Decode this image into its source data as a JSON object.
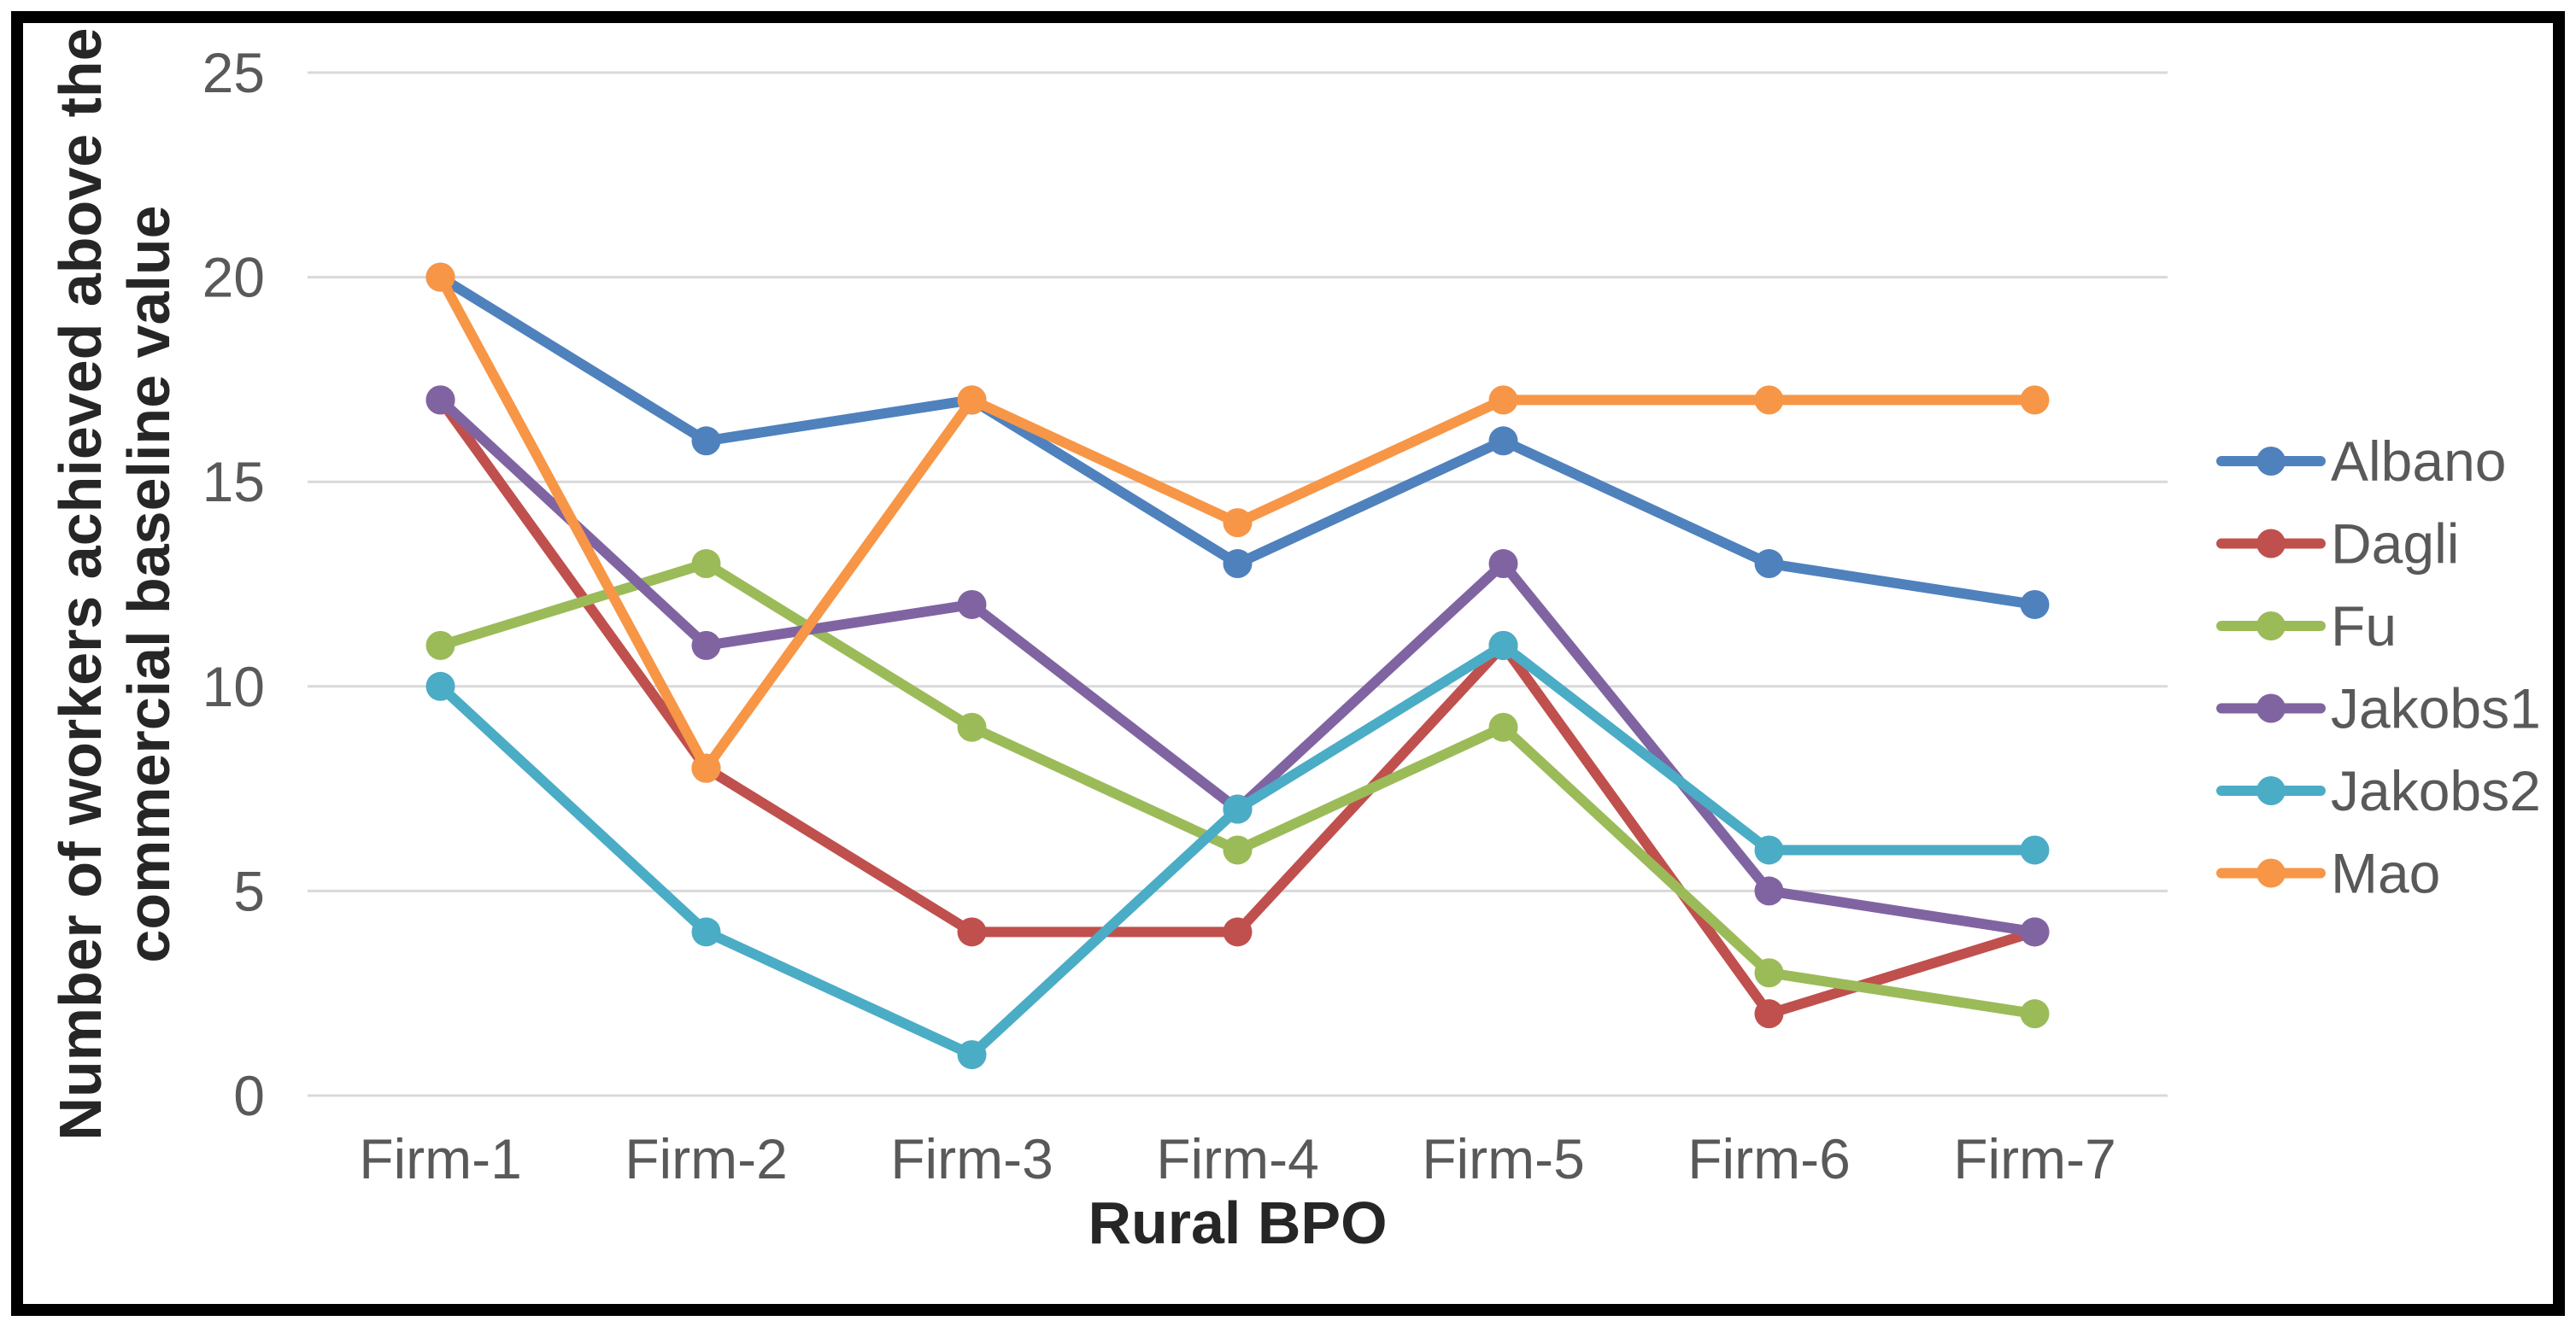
{
  "chart_data": {
    "type": "line",
    "title": "",
    "xlabel": "Rural BPO",
    "ylabel": "Number of workers achieved above the commercial baseline value",
    "ylabel_lines": [
      "Number of workers achieved above the",
      "commercial baseline value"
    ],
    "categories": [
      "Firm-1",
      "Firm-2",
      "Firm-3",
      "Firm-4",
      "Firm-5",
      "Firm-6",
      "Firm-7"
    ],
    "series": [
      {
        "name": "Albano",
        "color": "#4F81BD",
        "values": [
          20,
          16,
          17,
          13,
          16,
          13,
          12
        ]
      },
      {
        "name": "Dagli",
        "color": "#C0504D",
        "values": [
          17,
          8,
          4,
          4,
          11,
          2,
          4
        ]
      },
      {
        "name": "Fu",
        "color": "#9BBB59",
        "values": [
          11,
          13,
          9,
          6,
          9,
          3,
          2
        ]
      },
      {
        "name": "Jakobs1",
        "color": "#8064A2",
        "values": [
          17,
          11,
          12,
          7,
          13,
          5,
          4
        ]
      },
      {
        "name": "Jakobs2",
        "color": "#4BACC6",
        "values": [
          10,
          4,
          1,
          7,
          11,
          6,
          6
        ]
      },
      {
        "name": "Mao",
        "color": "#F79646",
        "values": [
          20,
          8,
          17,
          14,
          17,
          17,
          17
        ]
      }
    ],
    "y_ticks": [
      0,
      5,
      10,
      15,
      20,
      25
    ],
    "ylim": [
      0,
      25
    ],
    "grid": true,
    "legend_position": "right",
    "colors": {
      "grid": "#D9D9D9",
      "tick_label": "#595959",
      "axis_title": "#262626",
      "legend_label": "#595959",
      "frame_border": "#000000",
      "background": "#FFFFFF"
    }
  }
}
